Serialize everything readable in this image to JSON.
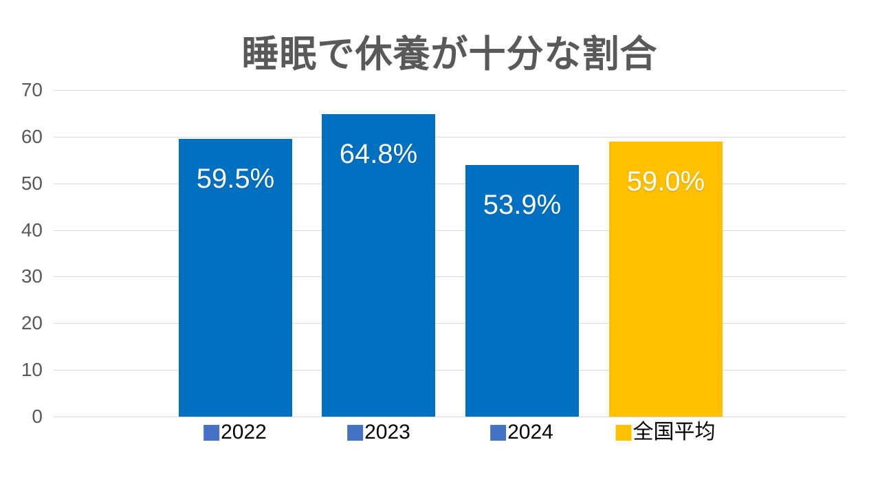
{
  "page": {
    "background": "#FFFFFF"
  },
  "chart_data": {
    "type": "bar",
    "title": "睡眠で休養が十分な割合",
    "categories": [
      "2022",
      "2023",
      "2024",
      "全国平均"
    ],
    "values": [
      59.5,
      64.8,
      53.9,
      59.0
    ],
    "data_labels": [
      "59.5%",
      "64.8%",
      "53.9%",
      "59.0%"
    ],
    "bar_colors": [
      "#0070C0",
      "#0070C0",
      "#0070C0",
      "#FFC000"
    ],
    "legend_marker_colors": [
      "#4472C4",
      "#4472C4",
      "#4472C4",
      "#FFC000"
    ],
    "y_ticks": [
      0,
      10,
      20,
      30,
      40,
      50,
      60,
      70
    ],
    "ylim": [
      0,
      70
    ],
    "grid": true,
    "legend_position": "category-labels-below-bars",
    "colors": {
      "title": "#595959",
      "tick_label": "#595959",
      "gridline": "#D9D9D9",
      "data_label": "#FFFFFF",
      "category_label": "#000000",
      "background": "#FFFFFF"
    }
  }
}
